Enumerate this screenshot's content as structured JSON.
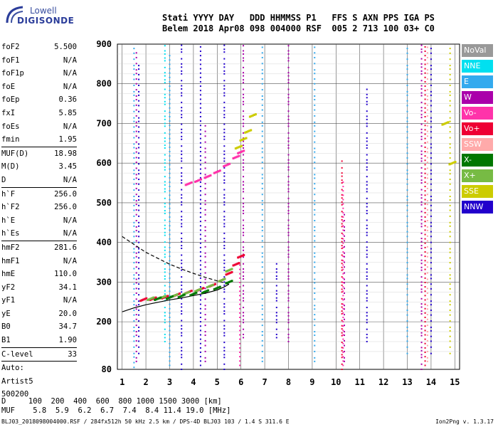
{
  "logo": {
    "line1": "Lowell",
    "line2": "DIGISONDE"
  },
  "header": {
    "line1": "Stati YYYY DAY   DDD HHMMSS P1   FFS S AXN PPS IGA PS",
    "line2": "Belem 2018 Apr08 098 004000 RSF  005 2 713 100 03+ C0"
  },
  "params": [
    {
      "name": "foF2",
      "value": "5.500"
    },
    {
      "name": "foF1",
      "value": "N/A"
    },
    {
      "name": "foF1p",
      "value": "N/A"
    },
    {
      "name": "foE",
      "value": "N/A"
    },
    {
      "name": "foEp",
      "value": "0.36"
    },
    {
      "name": "fxI",
      "value": "5.85"
    },
    {
      "name": "foEs",
      "value": "N/A"
    },
    {
      "name": "fmin",
      "value": "1.95"
    },
    {
      "sep": true
    },
    {
      "name": "MUF(D)",
      "value": "18.98"
    },
    {
      "name": "M(D)",
      "value": "3.45"
    },
    {
      "name": "D",
      "value": "N/A"
    },
    {
      "sep": true
    },
    {
      "name": "h`F",
      "value": "256.0"
    },
    {
      "name": "h`F2",
      "value": "256.0"
    },
    {
      "name": "h`E",
      "value": "N/A"
    },
    {
      "name": "h`Es",
      "value": "N/A"
    },
    {
      "sep": true
    },
    {
      "name": "hmF2",
      "value": "281.6"
    },
    {
      "name": "hmF1",
      "value": "N/A"
    },
    {
      "name": "hmE",
      "value": "110.0"
    },
    {
      "name": "yF2",
      "value": "34.1"
    },
    {
      "name": "yF1",
      "value": "N/A"
    },
    {
      "name": "yE",
      "value": "20.0"
    },
    {
      "name": "B0",
      "value": "34.7"
    },
    {
      "name": "B1",
      "value": "1.90"
    },
    {
      "sep": true
    },
    {
      "name": "C-level",
      "value": "33"
    },
    {
      "sep": true
    },
    {
      "name": "Auto:",
      "value": ""
    },
    {
      "name": "Artist5",
      "value": ""
    },
    {
      "name": "500200",
      "value": ""
    }
  ],
  "footer": {
    "row1": "D     100  200  400  600  800 1000 1500 3000 [km]",
    "row2": "MUF    5.8  5.9  6.2  6.7  7.4  8.4 11.4 19.0 [MHz]",
    "file": "BLJ03_2018098004000.RSF / 284fx512h 50 kHz 2.5 km / DPS-4D BLJ03 103 / 1.4 S 311.6 E",
    "version": "Ion2Png v. 1.3.17"
  },
  "legend": [
    {
      "label": "NoVal",
      "color": "#999999"
    },
    {
      "label": "NNE",
      "color": "#00e0f0"
    },
    {
      "label": "E",
      "color": "#33aaee"
    },
    {
      "label": "W",
      "color": "#aa00aa"
    },
    {
      "label": "Vo-",
      "color": "#ff33aa"
    },
    {
      "label": "Vo+",
      "color": "#ee0033"
    },
    {
      "label": "SSW",
      "color": "#ffaaaa"
    },
    {
      "label": "X-",
      "color": "#007700"
    },
    {
      "label": "X+",
      "color": "#77bb44"
    },
    {
      "label": "SSE",
      "color": "#cccc00"
    },
    {
      "label": "NNW",
      "color": "#2200cc"
    }
  ],
  "chart_data": {
    "type": "scatter",
    "xlabel": "",
    "ylabel": "",
    "xlim": [
      0.8,
      15.2
    ],
    "ylim": [
      80,
      900
    ],
    "x_ticks": [
      "1",
      "2",
      "3",
      "4",
      "5",
      "6",
      "7",
      "8",
      "9",
      "10",
      "11",
      "12",
      "13",
      "14",
      "15"
    ],
    "y_ticks": [
      "80",
      "200",
      "300",
      "400",
      "500",
      "600",
      "700",
      "800",
      "900"
    ],
    "grid": true,
    "series": [
      {
        "name": "Vo+",
        "color": "#ee0033",
        "x": [
          1.9,
          2.3,
          2.8,
          3.3,
          3.8,
          4.3,
          4.8,
          5.2,
          5.5,
          5.8,
          6.0
        ],
        "y": [
          256,
          258,
          262,
          268,
          275,
          282,
          292,
          305,
          322,
          345,
          365
        ]
      },
      {
        "name": "X+",
        "color": "#77bb44",
        "x": [
          2.2,
          2.7,
          3.2,
          3.7,
          4.2,
          4.7,
          5.2,
          5.5
        ],
        "y": [
          258,
          262,
          266,
          272,
          280,
          290,
          305,
          330
        ]
      },
      {
        "name": "X-",
        "color": "#007700",
        "x": [
          2.5,
          3.0,
          3.5,
          4.0,
          4.5,
          5.0,
          5.5
        ],
        "y": [
          258,
          261,
          265,
          270,
          276,
          285,
          300
        ]
      },
      {
        "name": "Vo- (2nd hop)",
        "color": "#ff33aa",
        "x": [
          3.8,
          4.2,
          4.6,
          5.0,
          5.4,
          5.8,
          6.0
        ],
        "y": [
          548,
          556,
          566,
          578,
          595,
          615,
          628
        ]
      },
      {
        "name": "SSE",
        "color": "#cccc00",
        "x": [
          5.9,
          6.1,
          6.3,
          6.5,
          14.6,
          14.9
        ],
        "y": [
          640,
          660,
          680,
          720,
          700,
          600
        ]
      }
    ],
    "profile": {
      "x": [
        1.0,
        1.5,
        2.0,
        2.5,
        3.0,
        3.5,
        4.0,
        4.5,
        5.0,
        5.3,
        5.5
      ],
      "y": [
        225,
        235,
        243,
        249,
        255,
        260,
        266,
        272,
        280,
        288,
        295
      ]
    },
    "topside": {
      "x": [
        1.0,
        1.5,
        2.0,
        2.5,
        3.0,
        3.5,
        4.0,
        4.5,
        5.0,
        5.5
      ],
      "y": [
        415,
        395,
        375,
        360,
        345,
        333,
        322,
        312,
        303,
        295
      ]
    }
  }
}
